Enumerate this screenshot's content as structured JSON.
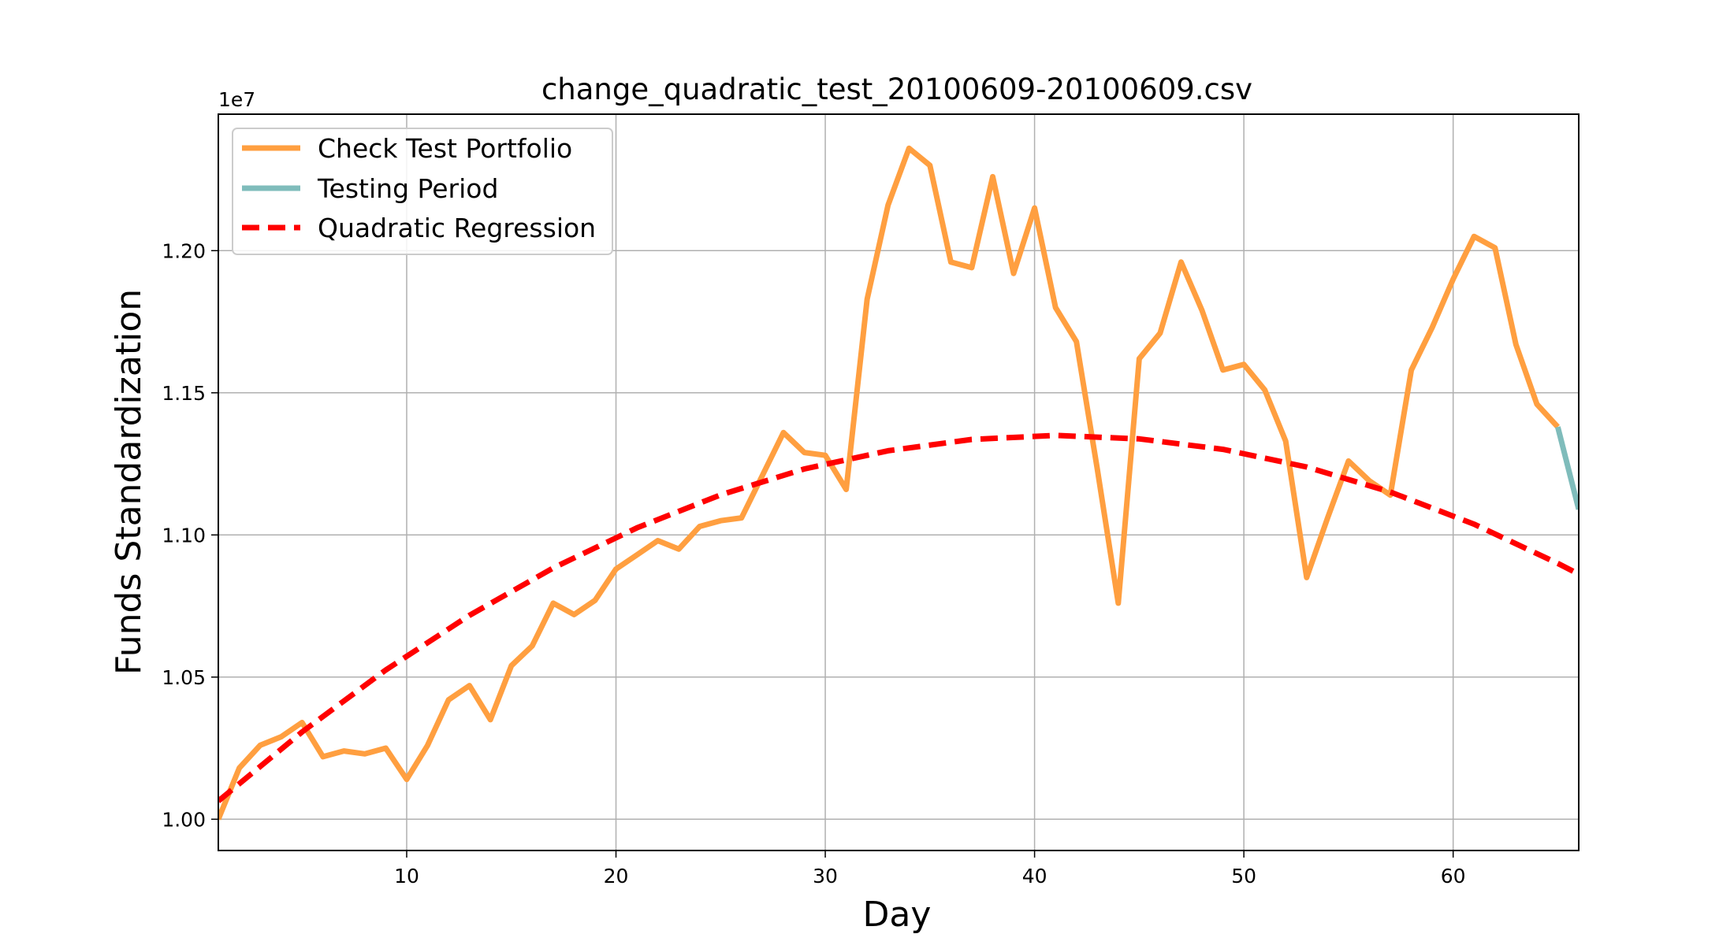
{
  "chart_data": {
    "type": "line",
    "title": "change_quadratic_test_20100609-20100609.csv",
    "xlabel": "Day",
    "ylabel": "Funds Standardization",
    "y_offset_label": "1e7",
    "xlim": [
      1,
      66
    ],
    "ylim": [
      0.989,
      1.248
    ],
    "x_ticks": [
      10,
      20,
      30,
      40,
      50,
      60
    ],
    "y_ticks": [
      1.0,
      1.05,
      1.1,
      1.15,
      1.2
    ],
    "y_tick_labels": [
      "1.00",
      "1.05",
      "1.10",
      "1.15",
      "1.20"
    ],
    "grid": true,
    "legend_position": "upper-left",
    "series": [
      {
        "name": "Check Test Portfolio",
        "color": "#ff9f40",
        "style": "solid",
        "x": [
          1,
          2,
          3,
          4,
          5,
          6,
          7,
          8,
          9,
          10,
          11,
          12,
          13,
          14,
          15,
          16,
          17,
          18,
          19,
          20,
          21,
          22,
          23,
          24,
          25,
          26,
          27,
          28,
          29,
          30,
          31,
          32,
          33,
          34,
          35,
          36,
          37,
          38,
          39,
          40,
          41,
          42,
          43,
          44,
          45,
          46,
          47,
          48,
          49,
          50,
          51,
          52,
          53,
          54,
          55,
          56,
          57,
          58,
          59,
          60,
          61,
          62,
          63,
          64,
          65
        ],
        "y": [
          1.0,
          1.018,
          1.026,
          1.029,
          1.034,
          1.022,
          1.024,
          1.023,
          1.025,
          1.014,
          1.026,
          1.042,
          1.047,
          1.035,
          1.054,
          1.061,
          1.076,
          1.072,
          1.077,
          1.088,
          1.093,
          1.098,
          1.095,
          1.103,
          1.105,
          1.106,
          1.121,
          1.136,
          1.129,
          1.128,
          1.116,
          1.183,
          1.216,
          1.236,
          1.23,
          1.196,
          1.194,
          1.226,
          1.192,
          1.215,
          1.18,
          1.168,
          1.123,
          1.076,
          1.162,
          1.171,
          1.196,
          1.179,
          1.158,
          1.16,
          1.151,
          1.133,
          1.085,
          1.106,
          1.126,
          1.119,
          1.114,
          1.158,
          1.173,
          1.19,
          1.205,
          1.201,
          1.167,
          1.146,
          1.138
        ]
      },
      {
        "name": "Testing Period",
        "color": "#7fbcbb",
        "style": "solid",
        "x": [
          65,
          66
        ],
        "y": [
          1.138,
          1.109
        ]
      },
      {
        "name": "Quadratic Regression",
        "color": "#ff0000",
        "style": "dashed",
        "x": [
          1,
          5,
          9,
          13,
          17,
          21,
          25,
          29,
          33,
          37,
          41,
          45,
          49,
          53,
          57,
          61,
          65,
          66
        ],
        "y": [
          1.0064,
          1.0307,
          1.0525,
          1.0717,
          1.0884,
          1.1025,
          1.1141,
          1.1232,
          1.1296,
          1.1336,
          1.135,
          1.1338,
          1.1301,
          1.1239,
          1.1151,
          1.1038,
          1.09,
          1.0862
        ]
      }
    ]
  }
}
